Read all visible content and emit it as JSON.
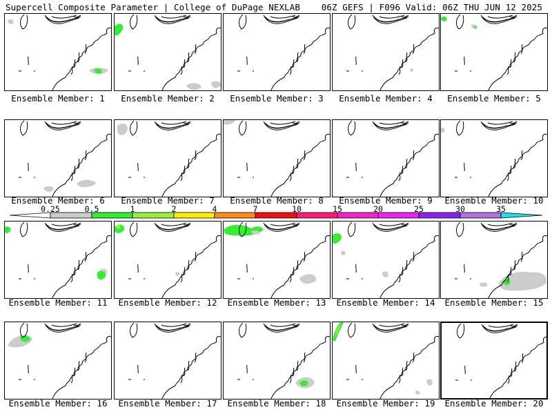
{
  "header": {
    "left": "Supercell Composite Parameter | College of DuPage NEXLAB",
    "right": "06Z GEFS | F096 Valid: 06Z THU JUN 12 2025"
  },
  "colorbar": {
    "labels": [
      "0.25",
      "0.5",
      "1",
      "2",
      "4",
      "7",
      "10",
      "15",
      "20",
      "25",
      "30",
      "35"
    ],
    "colors": [
      "#ffffff",
      "#cccccc",
      "#33ee33",
      "#99ee44",
      "#ffee00",
      "#ff8c1a",
      "#ee1111",
      "#ff1a7a",
      "#ff22cc",
      "#ee22ee",
      "#8a22ee",
      "#b070e0",
      "#22ddee"
    ]
  },
  "members": [
    {
      "label": "Ensemble Member: 1"
    },
    {
      "label": "Ensemble Member: 2"
    },
    {
      "label": "Ensemble Member: 3"
    },
    {
      "label": "Ensemble Member: 4"
    },
    {
      "label": "Ensemble Member: 5"
    },
    {
      "label": "Ensemble Member: 6"
    },
    {
      "label": "Ensemble Member: 7"
    },
    {
      "label": "Ensemble Member: 8"
    },
    {
      "label": "Ensemble Member: 9"
    },
    {
      "label": "Ensemble Member: 10"
    },
    {
      "label": "Ensemble Member: 11"
    },
    {
      "label": "Ensemble Member: 12"
    },
    {
      "label": "Ensemble Member: 13"
    },
    {
      "label": "Ensemble Member: 14"
    },
    {
      "label": "Ensemble Member: 15"
    },
    {
      "label": "Ensemble Member: 16"
    },
    {
      "label": "Ensemble Member: 17"
    },
    {
      "label": "Ensemble Member: 18"
    },
    {
      "label": "Ensemble Member: 19"
    },
    {
      "label": "Ensemble Member: 20"
    }
  ],
  "selected_member": "Ensemble Member: 20"
}
